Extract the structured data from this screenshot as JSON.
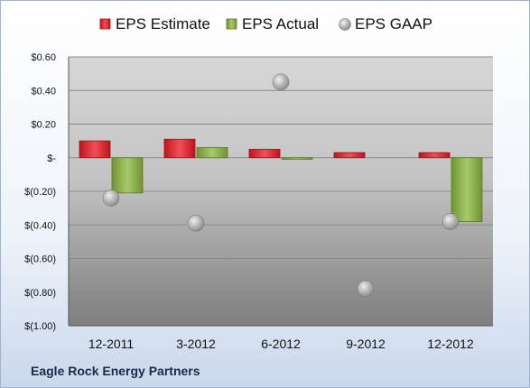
{
  "chart_data": {
    "type": "bar",
    "title": "",
    "xlabel": "",
    "ylabel": "",
    "categories": [
      "12-2011",
      "3-2012",
      "6-2012",
      "9-2012",
      "12-2012"
    ],
    "series": [
      {
        "name": "EPS Estimate",
        "kind": "bar",
        "color": "#e0323a",
        "values": [
          0.1,
          0.11,
          0.05,
          0.03,
          0.03
        ]
      },
      {
        "name": "EPS Actual",
        "kind": "bar",
        "color": "#8db04a",
        "values": [
          -0.21,
          0.06,
          -0.01,
          null,
          -0.38
        ]
      },
      {
        "name": "EPS GAAP",
        "kind": "scatter",
        "color": "#a9a9a9",
        "values": [
          -0.24,
          -0.39,
          0.45,
          -0.78,
          -0.38
        ]
      }
    ],
    "ylim": [
      -1.0,
      0.6
    ],
    "yticks": [
      0.6,
      0.4,
      0.2,
      0.0,
      -0.2,
      -0.4,
      -0.6,
      -0.8,
      -1.0
    ],
    "ytick_labels": [
      "$0.60",
      "$0.40",
      "$0.20",
      "$-",
      "$(0.20)",
      "$(0.40)",
      "$(0.60)",
      "$(0.80)",
      "$(1.00)"
    ],
    "grid": true,
    "legend": "top"
  },
  "footer": {
    "company": "Eagle Rock Energy Partners"
  }
}
